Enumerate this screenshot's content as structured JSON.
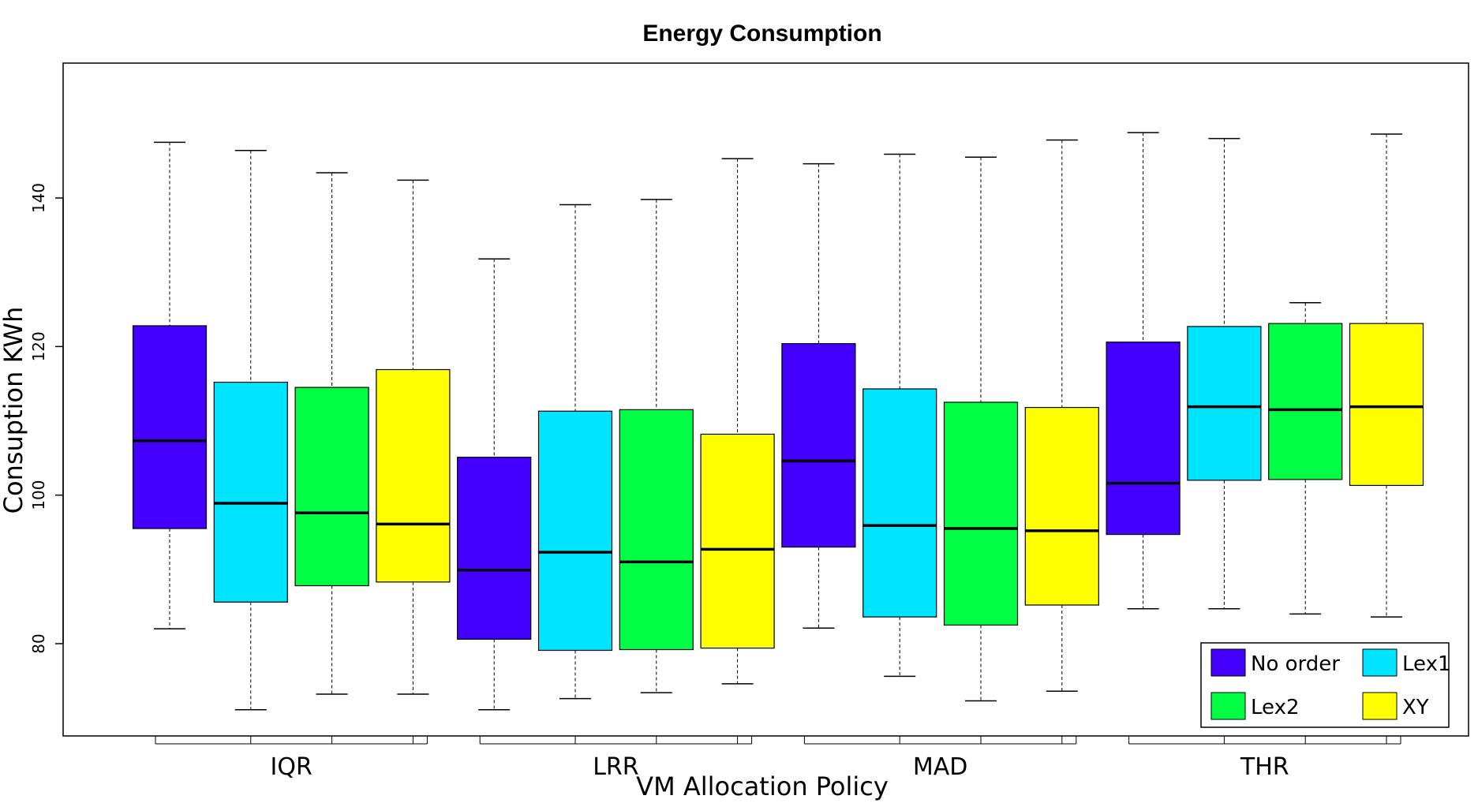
{
  "chart_data": {
    "type": "boxplot",
    "title": "Energy Consumption",
    "xlabel": "VM Allocation Policy",
    "ylabel": "Consuption KWh",
    "ylim": [
      67,
      150
    ],
    "yticks": [
      80,
      100,
      120,
      140
    ],
    "grid": false,
    "legend_position": "bottom-right",
    "groups": [
      "IQR",
      "LRR",
      "MAD",
      "THR"
    ],
    "series": [
      {
        "name": "No order",
        "color": "#4400ff"
      },
      {
        "name": "Lex1",
        "color": "#00e5ff"
      },
      {
        "name": "Lex2",
        "color": "#00ff44"
      },
      {
        "name": "XY",
        "color": "#ffff00"
      }
    ],
    "boxes": [
      {
        "group": "IQR",
        "series": "No order",
        "min": 82,
        "q1": 95.5,
        "median": 107.3,
        "q3": 122.8,
        "max": 147.5
      },
      {
        "group": "IQR",
        "series": "Lex1",
        "min": 71.1,
        "q1": 85.6,
        "median": 98.9,
        "q3": 115.2,
        "max": 146.4
      },
      {
        "group": "IQR",
        "series": "Lex2",
        "min": 73.2,
        "q1": 87.8,
        "median": 97.6,
        "q3": 114.5,
        "max": 143.4
      },
      {
        "group": "IQR",
        "series": "XY",
        "min": 73.2,
        "q1": 88.3,
        "median": 96.1,
        "q3": 116.9,
        "max": 142.4
      },
      {
        "group": "LRR",
        "series": "No order",
        "min": 71.1,
        "q1": 80.6,
        "median": 89.9,
        "q3": 105.1,
        "max": 131.8
      },
      {
        "group": "LRR",
        "series": "Lex1",
        "min": 72.6,
        "q1": 79.1,
        "median": 92.3,
        "q3": 111.3,
        "max": 139.1
      },
      {
        "group": "LRR",
        "series": "Lex2",
        "min": 73.4,
        "q1": 79.2,
        "median": 91,
        "q3": 111.5,
        "max": 139.8
      },
      {
        "group": "LRR",
        "series": "XY",
        "min": 74.6,
        "q1": 79.4,
        "median": 92.7,
        "q3": 108.2,
        "max": 145.3
      },
      {
        "group": "MAD",
        "series": "No order",
        "min": 82.1,
        "q1": 93,
        "median": 104.6,
        "q3": 120.4,
        "max": 144.6
      },
      {
        "group": "MAD",
        "series": "Lex1",
        "min": 75.6,
        "q1": 83.6,
        "median": 95.9,
        "q3": 114.3,
        "max": 145.9
      },
      {
        "group": "MAD",
        "series": "Lex2",
        "min": 72.3,
        "q1": 82.5,
        "median": 95.5,
        "q3": 112.5,
        "max": 145.5
      },
      {
        "group": "MAD",
        "series": "XY",
        "min": 73.6,
        "q1": 85.2,
        "median": 95.2,
        "q3": 111.8,
        "max": 147.8
      },
      {
        "group": "THR",
        "series": "No order",
        "min": 84.7,
        "q1": 94.7,
        "median": 101.6,
        "q3": 120.6,
        "max": 148.8
      },
      {
        "group": "THR",
        "series": "Lex1",
        "min": 84.7,
        "q1": 102,
        "median": 111.9,
        "q3": 122.7,
        "max": 148
      },
      {
        "group": "THR",
        "series": "Lex2",
        "min": 84,
        "q1": 102.1,
        "median": 111.5,
        "q3": 123.1,
        "max": 125.9
      },
      {
        "group": "THR",
        "series": "XY",
        "min": 83.6,
        "q1": 101.3,
        "median": 111.9,
        "q3": 123.1,
        "max": 148.6
      }
    ]
  }
}
